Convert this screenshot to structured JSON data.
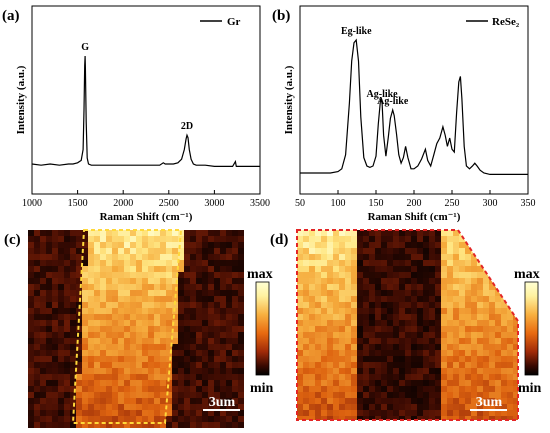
{
  "colors": {
    "line": "#000000",
    "border_dashed_c": "#ffd83a",
    "border_dashed_d": "#e32626",
    "scale_text": "#ffffff"
  },
  "panels": {
    "a": {
      "label": "(a)"
    },
    "b": {
      "label": "(b)"
    },
    "c": {
      "label": "(c)",
      "colorbar": {
        "max": "max",
        "min": "min"
      },
      "scalebar": "3um"
    },
    "d": {
      "label": "(d)",
      "colorbar": {
        "max": "max",
        "min": "min"
      },
      "scalebar": "3um"
    }
  },
  "chart_data": [
    {
      "type": "line",
      "panel": "a",
      "xlabel": "Raman Shift (cm⁻¹)",
      "ylabel": "Intensity (a.u.)",
      "xlim": [
        1000,
        3500
      ],
      "xticks": [
        "1000",
        "1500",
        "2000",
        "2500",
        "3000",
        "3500"
      ],
      "legend": {
        "entry": "Gr",
        "placement": "top-right"
      },
      "annotations": [
        {
          "text": "G",
          "x": 1582
        },
        {
          "text": "2D",
          "x": 2700
        }
      ],
      "series": [
        {
          "name": "Gr",
          "x": [
            1000,
            1100,
            1200,
            1300,
            1400,
            1450,
            1500,
            1540,
            1560,
            1570,
            1578,
            1582,
            1586,
            1594,
            1605,
            1620,
            1650,
            1700,
            1800,
            1900,
            2000,
            2100,
            2200,
            2300,
            2400,
            2440,
            2460,
            2480,
            2500,
            2550,
            2600,
            2640,
            2670,
            2690,
            2700,
            2710,
            2725,
            2745,
            2770,
            2800,
            2850,
            2900,
            3000,
            3100,
            3200,
            3230,
            3240,
            3250,
            3300,
            3400,
            3500
          ],
          "y": [
            0.1,
            0.09,
            0.1,
            0.09,
            0.1,
            0.1,
            0.11,
            0.13,
            0.22,
            0.55,
            0.92,
            1.0,
            0.9,
            0.45,
            0.15,
            0.1,
            0.09,
            0.09,
            0.09,
            0.09,
            0.09,
            0.09,
            0.09,
            0.09,
            0.09,
            0.11,
            0.1,
            0.1,
            0.1,
            0.1,
            0.11,
            0.14,
            0.22,
            0.31,
            0.34,
            0.32,
            0.22,
            0.14,
            0.1,
            0.09,
            0.09,
            0.09,
            0.08,
            0.08,
            0.08,
            0.12,
            0.08,
            0.08,
            0.08,
            0.08,
            0.08
          ]
        }
      ]
    },
    {
      "type": "line",
      "panel": "b",
      "xlabel": "Raman Shift (cm⁻¹)",
      "ylabel": "Intensity (a.u.)",
      "xlim": [
        50,
        350
      ],
      "xticks": [
        "50",
        "100",
        "150",
        "200",
        "250",
        "300",
        "350"
      ],
      "legend": {
        "entry": "ReSe₂",
        "placement": "top-right"
      },
      "annotations": [
        {
          "text": "Eg-like",
          "x": 124
        },
        {
          "text": "Ag-like",
          "x": 158
        },
        {
          "text": "Ag-like",
          "x": 172
        }
      ],
      "series": [
        {
          "name": "ReSe₂",
          "x": [
            50,
            70,
            90,
            100,
            105,
            110,
            115,
            118,
            121,
            124,
            127,
            130,
            134,
            138,
            142,
            146,
            150,
            153,
            156,
            158,
            160,
            163,
            166,
            169,
            172,
            174,
            177,
            180,
            183,
            186,
            189,
            192,
            196,
            200,
            205,
            210,
            215,
            218,
            222,
            226,
            230,
            234,
            238,
            241,
            244,
            247,
            250,
            253,
            256,
            259,
            261,
            263,
            266,
            269,
            273,
            277,
            280,
            283,
            287,
            292,
            300,
            320,
            350
          ],
          "y": [
            0.05,
            0.05,
            0.05,
            0.06,
            0.08,
            0.18,
            0.55,
            0.85,
            0.98,
            1.0,
            0.85,
            0.45,
            0.16,
            0.1,
            0.09,
            0.1,
            0.17,
            0.4,
            0.58,
            0.55,
            0.32,
            0.17,
            0.3,
            0.44,
            0.5,
            0.46,
            0.33,
            0.18,
            0.12,
            0.16,
            0.24,
            0.16,
            0.08,
            0.08,
            0.1,
            0.15,
            0.22,
            0.14,
            0.1,
            0.18,
            0.26,
            0.3,
            0.38,
            0.32,
            0.24,
            0.3,
            0.22,
            0.2,
            0.48,
            0.7,
            0.74,
            0.58,
            0.24,
            0.1,
            0.08,
            0.1,
            0.12,
            0.1,
            0.07,
            0.05,
            0.04,
            0.04,
            0.04
          ]
        }
      ]
    },
    {
      "type": "heatmap",
      "panel": "c",
      "colorbar": {
        "max_label": "max",
        "min_label": "min"
      },
      "scalebar": "3um"
    },
    {
      "type": "heatmap",
      "panel": "d",
      "colorbar": {
        "max_label": "max",
        "min_label": "min"
      },
      "scalebar": "3um"
    }
  ]
}
